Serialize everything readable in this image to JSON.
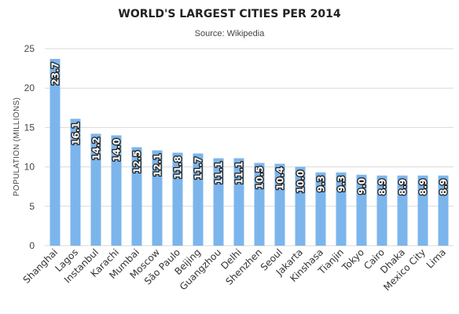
{
  "chart_data": {
    "type": "bar",
    "title": "WORLD'S LARGEST CITIES PER 2014",
    "subtitle": "Source: Wikipedia",
    "xlabel": "",
    "ylabel": "POPULATION (MILLIONS)",
    "ylim": [
      0,
      25
    ],
    "yticks": [
      0,
      5,
      10,
      15,
      20,
      25
    ],
    "grid": true,
    "legend": "none",
    "bar_color": "#7cb5ec",
    "categories": [
      "Shanghai",
      "Lagos",
      "Instanbul",
      "Karachi",
      "Mumbai",
      "Moscow",
      "São Paulo",
      "Beijing",
      "Guangzhou",
      "Delhi",
      "Shenzhen",
      "Seoul",
      "Jakarta",
      "Kinshasa",
      "Tianjin",
      "Tokyo",
      "Cairo",
      "Dhaka",
      "Mexico City",
      "Lima"
    ],
    "values": [
      23.7,
      16.1,
      14.2,
      14.0,
      12.5,
      12.1,
      11.8,
      11.7,
      11.1,
      11.1,
      10.5,
      10.4,
      10.0,
      9.3,
      9.3,
      9.0,
      8.9,
      8.9,
      8.9,
      8.9
    ],
    "data_labels": [
      "23.7",
      "16.1",
      "14.2",
      "14.0",
      "12.5",
      "12.1",
      "11.8",
      "11.7",
      "11.1",
      "11.1",
      "10.5",
      "10.4",
      "10.0",
      "9.3",
      "9.3",
      "9.0",
      "8.9",
      "8.9",
      "8.9",
      "8.9"
    ]
  }
}
